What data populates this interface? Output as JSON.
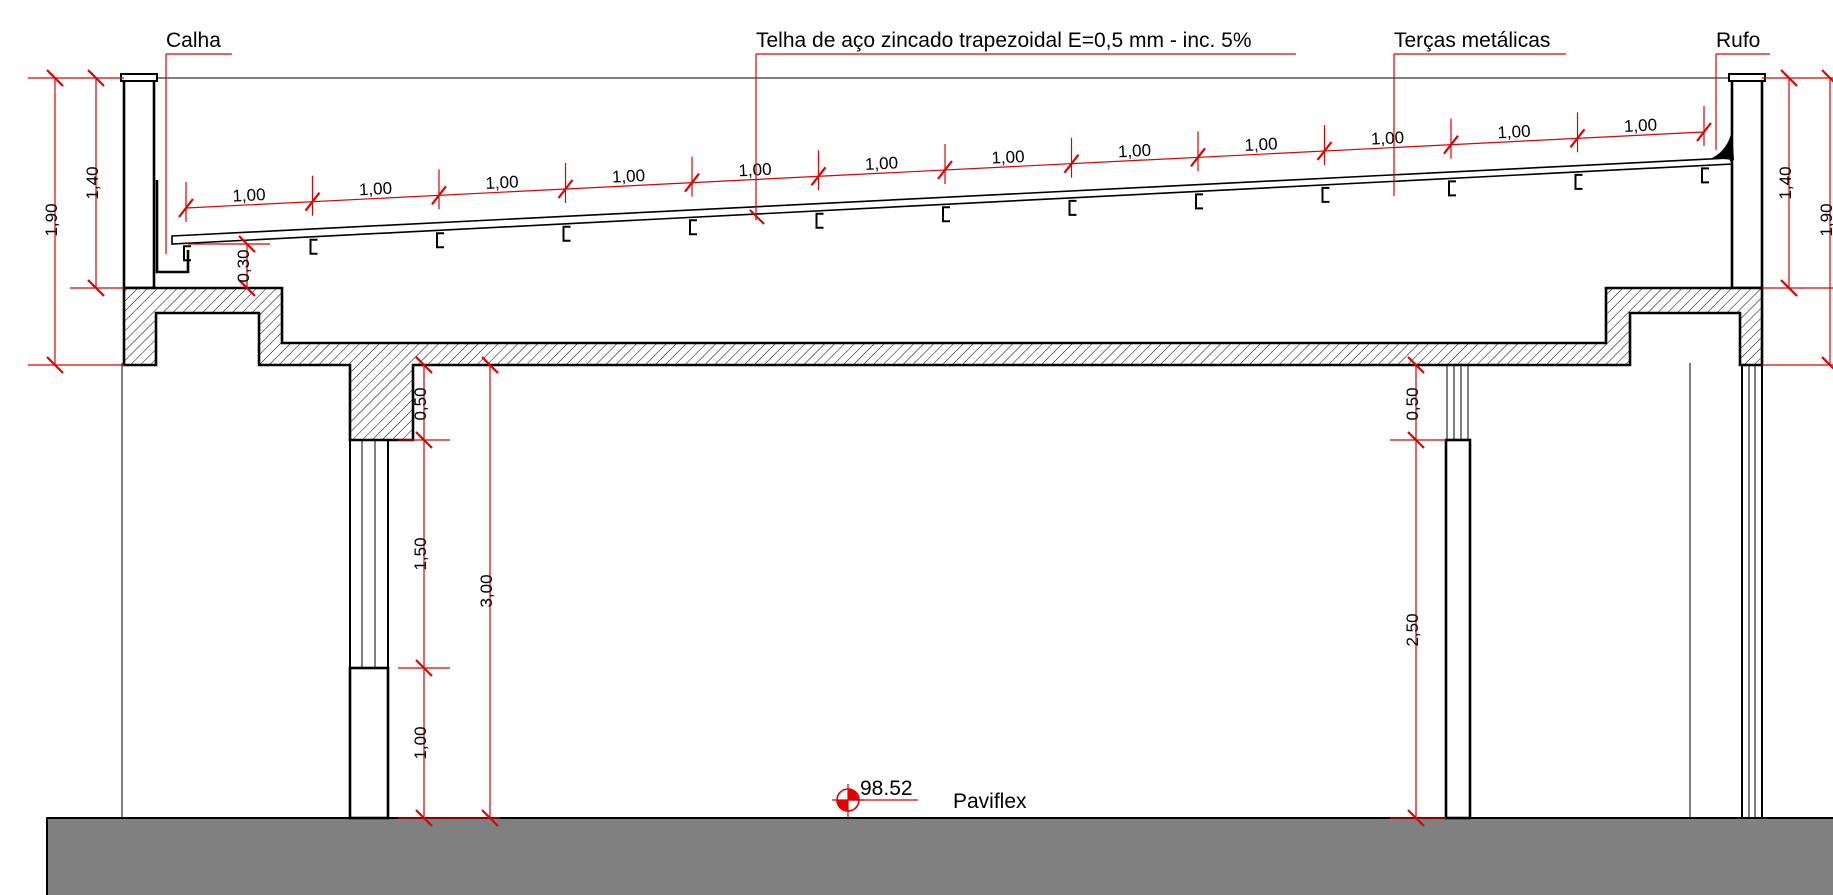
{
  "labels": {
    "calha": "Calha",
    "telha": "Telha de aço zincado trapezoidal  E=0,5 mm - inc. 5%",
    "tercas": "Terças metálicas",
    "rufo": "Rufo",
    "level": "98.52",
    "floor": "Paviflex"
  },
  "dimensions": {
    "left_total": "1,90",
    "left_parapet": "1,40",
    "right_parapet": "1,40",
    "right_total": "1,90",
    "gutter": "0,30",
    "left_beam": "0,50",
    "left_window": "1,50",
    "left_sill": "1,00",
    "ceiling_height": "3,00",
    "right_beam": "0,50",
    "right_door": "2,50",
    "purlin_spacing": [
      "1,00",
      "1,00",
      "1,00",
      "1,00",
      "1,00",
      "1,00",
      "1,00",
      "1,00",
      "1,00",
      "1,00",
      "1,00",
      "1,00"
    ]
  },
  "colors": {
    "dimension": "#e00000",
    "ground": "#808080",
    "lines": "#000000"
  }
}
